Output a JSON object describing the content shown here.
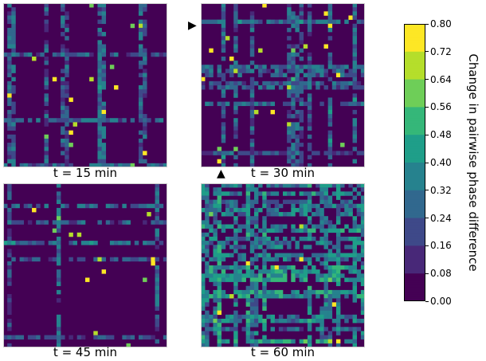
{
  "chart_data": {
    "type": "heatmap",
    "grid_size": 40,
    "panels": [
      {
        "label": "t = 15 min",
        "seed": 11,
        "density": "sparse"
      },
      {
        "label": "t = 30 min",
        "seed": 23,
        "density": "medium",
        "marker_left": "▶",
        "marker_bottom": "▲"
      },
      {
        "label": "t = 45 min",
        "seed": 37,
        "density": "sparse"
      },
      {
        "label": "t = 60 min",
        "seed": 53,
        "density": "dense"
      }
    ],
    "colorbar": {
      "label": "Change in pairwise phase difference",
      "range": [
        0.0,
        0.8
      ],
      "ticks": [
        "0.80",
        "0.72",
        "0.64",
        "0.56",
        "0.48",
        "0.40",
        "0.32",
        "0.24",
        "0.16",
        "0.08",
        "0.00"
      ]
    },
    "colormap": [
      "#440154",
      "#482878",
      "#3e4989",
      "#31688e",
      "#26828e",
      "#1f9e89",
      "#35b779",
      "#6ece58",
      "#b5de2b",
      "#fde725"
    ]
  }
}
